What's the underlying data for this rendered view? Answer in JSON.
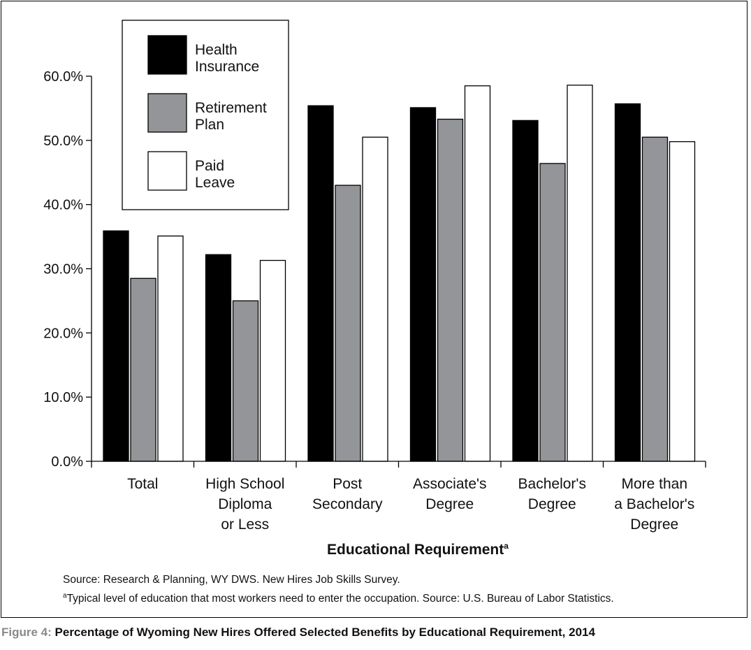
{
  "chart_data": {
    "type": "bar",
    "categories": [
      [
        "Total"
      ],
      [
        "High School",
        "Diploma",
        "or Less"
      ],
      [
        "Post",
        "Secondary"
      ],
      [
        "Associate's",
        "Degree"
      ],
      [
        "Bachelor's",
        "Degree"
      ],
      [
        "More than",
        "a Bachelor's",
        "Degree"
      ]
    ],
    "series": [
      {
        "name": "Health Insurance",
        "legend_lines": [
          "Health",
          "Insurance"
        ],
        "color": "#000000",
        "values": [
          35.9,
          32.2,
          55.4,
          55.1,
          53.1,
          55.7
        ]
      },
      {
        "name": "Retirement Plan",
        "legend_lines": [
          "Retirement",
          "Plan"
        ],
        "color": "#939598",
        "values": [
          28.5,
          25.0,
          43.0,
          53.3,
          46.4,
          50.5
        ]
      },
      {
        "name": "Paid Leave",
        "legend_lines": [
          "Paid",
          "Leave"
        ],
        "color": "#ffffff",
        "values": [
          35.1,
          31.3,
          50.5,
          58.5,
          58.6,
          49.8
        ]
      }
    ],
    "ylim": [
      0,
      60
    ],
    "yticks": [
      0,
      10,
      20,
      30,
      40,
      50,
      60
    ],
    "ytick_labels": [
      "0.0%",
      "10.0%",
      "20.0%",
      "30.0%",
      "40.0%",
      "50.0%",
      "60.0%"
    ],
    "xlabel": "Educational Requirement",
    "xlabel_sup": "a",
    "ylabel": "",
    "grid": false,
    "legend_position": "top-left"
  },
  "notes": {
    "source": "Source: Research & Planning, WY DWS. New Hires Job Skills Survey.",
    "footnote_mark": "a",
    "footnote": "Typical level of education that most workers need to enter the occupation. Source: U.S. Bureau of Labor Statistics."
  },
  "caption": {
    "figure_number": "Figure 4:",
    "title": " Percentage of Wyoming New Hires Offered Selected Benefits by Educational Requirement, 2014"
  }
}
